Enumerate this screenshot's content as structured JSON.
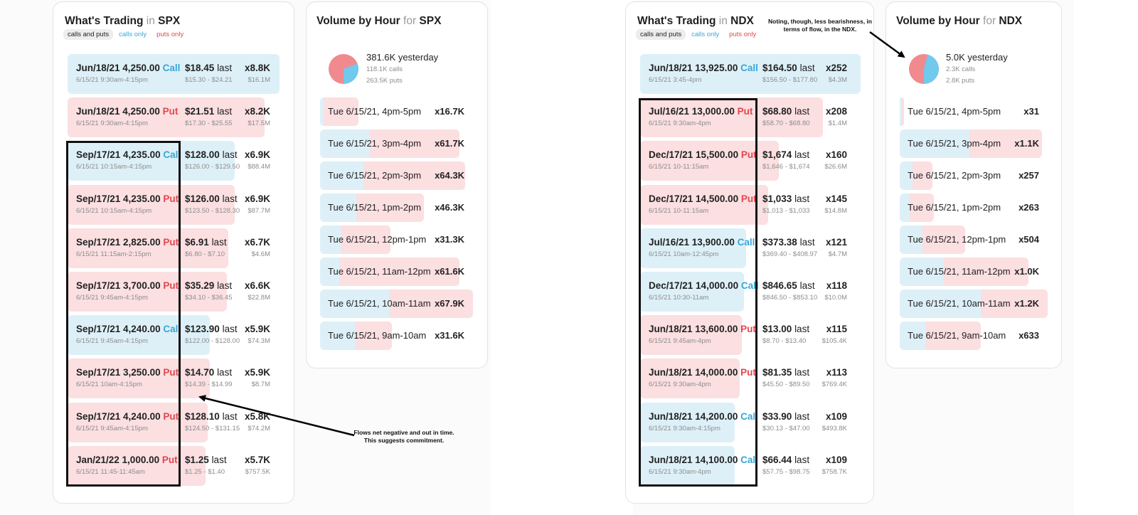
{
  "colors": {
    "call": "#3aa6d8",
    "put": "#e2464d",
    "call_bg": "#ddf0f8",
    "put_bg": "#fbdfe1"
  },
  "spx": {
    "trading": {
      "title_a": "What's Trading",
      "title_in": "in",
      "title_sym": "SPX",
      "filters": [
        "calls and puts",
        "calls only",
        "puts only"
      ],
      "rows": [
        {
          "name": "Jun/18/21 4,250.00",
          "type": "Call",
          "time": "6/15/21 9:30am-4:15pm",
          "last": "$18.45",
          "last_label": "last",
          "range": "$15.30 - $24.21",
          "count": "x8.8K",
          "premium": "$16.1M",
          "bar": 1.0
        },
        {
          "name": "Jun/18/21 4,250.00",
          "type": "Put",
          "time": "6/15/21 9:30am-4:15pm",
          "last": "$21.51",
          "last_label": "last",
          "range": "$17.30 - $25.55",
          "count": "x8.2K",
          "premium": "$17.5M",
          "bar": 0.93
        },
        {
          "name": "Sep/17/21 4,235.00",
          "type": "Call",
          "time": "6/15/21 10:15am-4:15pm",
          "last": "$128.00",
          "last_label": "last",
          "range": "$126.00 - $129.50",
          "count": "x6.9K",
          "premium": "$88.4M",
          "bar": 0.79
        },
        {
          "name": "Sep/17/21 4,235.00",
          "type": "Put",
          "time": "6/15/21 10:15am-4:15pm",
          "last": "$126.00",
          "last_label": "last",
          "range": "$123.50 - $128.30",
          "count": "x6.9K",
          "premium": "$87.7M",
          "bar": 0.79
        },
        {
          "name": "Sep/17/21 2,825.00",
          "type": "Put",
          "time": "6/15/21 11:15am-2:15pm",
          "last": "$6.91",
          "last_label": "last",
          "range": "$6.80 - $7.10",
          "count": "x6.7K",
          "premium": "$4.6M",
          "bar": 0.76
        },
        {
          "name": "Sep/17/21 3,700.00",
          "type": "Put",
          "time": "6/15/21 9:45am-4:15pm",
          "last": "$35.29",
          "last_label": "last",
          "range": "$34.10 - $36.45",
          "count": "x6.6K",
          "premium": "$22.8M",
          "bar": 0.75
        },
        {
          "name": "Sep/17/21 4,240.00",
          "type": "Call",
          "time": "6/15/21 9:45am-4:15pm",
          "last": "$123.90",
          "last_label": "last",
          "range": "$122.00 - $128.00",
          "count": "x5.9K",
          "premium": "$74.3M",
          "bar": 0.67
        },
        {
          "name": "Sep/17/21 3,250.00",
          "type": "Put",
          "time": "6/15/21 10am-4:15pm",
          "last": "$14.70",
          "last_label": "last",
          "range": "$14.39 - $14.99",
          "count": "x5.9K",
          "premium": "$8.7M",
          "bar": 0.67
        },
        {
          "name": "Sep/17/21 4,240.00",
          "type": "Put",
          "time": "6/15/21 9:45am-4:15pm",
          "last": "$128.10",
          "last_label": "last",
          "range": "$124.50 - $131.15",
          "count": "x5.8K",
          "premium": "$74.2M",
          "bar": 0.66
        },
        {
          "name": "Jan/21/22 1,000.00",
          "type": "Put",
          "time": "6/15/21 11:45-11:45am",
          "last": "$1.25",
          "last_label": "last",
          "range": "$1.25 - $1.40",
          "count": "x5.7K",
          "premium": "$757.5K",
          "bar": 0.65
        }
      ]
    },
    "volume": {
      "title_a": "Volume by Hour",
      "title_in": "for",
      "title_sym": "SPX",
      "total": "381.6K yesterday",
      "calls": "118.1K calls",
      "puts": "263.5K puts",
      "call_fraction": 0.31,
      "rows": [
        {
          "label": "Tue 6/15/21, 4pm-5pm",
          "count": "x16.7K",
          "total": 0.25,
          "call_frac": 0.1
        },
        {
          "label": "Tue 6/15/21, 3pm-4pm",
          "count": "x61.7K",
          "total": 0.91,
          "call_frac": 0.35
        },
        {
          "label": "Tue 6/15/21, 2pm-3pm",
          "count": "x64.3K",
          "total": 0.95,
          "call_frac": 0.3
        },
        {
          "label": "Tue 6/15/21, 1pm-2pm",
          "count": "x46.3K",
          "total": 0.68,
          "call_frac": 0.35
        },
        {
          "label": "Tue 6/15/21, 12pm-1pm",
          "count": "x31.3K",
          "total": 0.46,
          "call_frac": 0.29
        },
        {
          "label": "Tue 6/15/21, 11am-12pm",
          "count": "x61.6K",
          "total": 0.91,
          "call_frac": 0.14
        },
        {
          "label": "Tue 6/15/21, 10am-11am",
          "count": "x67.9K",
          "total": 1.0,
          "call_frac": 0.45
        },
        {
          "label": "Tue 6/15/21, 9am-10am",
          "count": "x31.6K",
          "total": 0.47,
          "call_frac": 0.49
        }
      ]
    }
  },
  "ndx": {
    "trading": {
      "title_a": "What's Trading",
      "title_in": "in",
      "title_sym": "NDX",
      "filters": [
        "calls and puts",
        "calls only",
        "puts only"
      ],
      "rows": [
        {
          "name": "Jun/18/21 13,925.00",
          "type": "Call",
          "time": "6/15/21 3:45-4pm",
          "last": "$164.50",
          "last_label": "last",
          "range": "$156.50 - $177.80",
          "count": "x252",
          "premium": "$4.3M",
          "bar": 1.0
        },
        {
          "name": "Jul/16/21 13,000.00",
          "type": "Put",
          "time": "6/15/21 9:30am-4pm",
          "last": "$68.80",
          "last_label": "last",
          "range": "$58.70 - $68.80",
          "count": "x208",
          "premium": "$1.4M",
          "bar": 0.83
        },
        {
          "name": "Dec/17/21 15,500.00",
          "type": "Put",
          "time": "6/15/21 10-11:15am",
          "last": "$1,674",
          "last_label": "last",
          "range": "$1,646 - $1,674",
          "count": "x160",
          "premium": "$26.6M",
          "bar": 0.63
        },
        {
          "name": "Dec/17/21 14,500.00",
          "type": "Put",
          "time": "6/15/21 10-11:15am",
          "last": "$1,033",
          "last_label": "last",
          "range": "$1,013 - $1,033",
          "count": "x145",
          "premium": "$14.8M",
          "bar": 0.58
        },
        {
          "name": "Jul/16/21 13,900.00",
          "type": "Call",
          "time": "6/15/21 10am-12:45pm",
          "last": "$373.38",
          "last_label": "last",
          "range": "$369.40 - $408.97",
          "count": "x121",
          "premium": "$4.7M",
          "bar": 0.48
        },
        {
          "name": "Dec/17/21 14,000.00",
          "type": "Call",
          "time": "6/15/21 10:30-11am",
          "last": "$846.65",
          "last_label": "last",
          "range": "$846.50 - $853.10",
          "count": "x118",
          "premium": "$10.0M",
          "bar": 0.47
        },
        {
          "name": "Jun/18/21 13,600.00",
          "type": "Put",
          "time": "6/15/21 9:45am-4pm",
          "last": "$13.00",
          "last_label": "last",
          "range": "$8.70 - $13.40",
          "count": "x115",
          "premium": "$105.4K",
          "bar": 0.46
        },
        {
          "name": "Jun/18/21 14,000.00",
          "type": "Put",
          "time": "6/15/21 9:30am-4pm",
          "last": "$81.35",
          "last_label": "last",
          "range": "$45.50 - $89.50",
          "count": "x113",
          "premium": "$769.4K",
          "bar": 0.45
        },
        {
          "name": "Jun/18/21 14,200.00",
          "type": "Call",
          "time": "6/15/21 9:30am-4:15pm",
          "last": "$33.90",
          "last_label": "last",
          "range": "$30.13 - $47.00",
          "count": "x109",
          "premium": "$493.8K",
          "bar": 0.43
        },
        {
          "name": "Jun/18/21 14,100.00",
          "type": "Call",
          "time": "6/15/21 9:30am-4pm",
          "last": "$66.44",
          "last_label": "last",
          "range": "$57.75 - $98.75",
          "count": "x109",
          "premium": "$758.7K",
          "bar": 0.43
        }
      ]
    },
    "volume": {
      "title_a": "Volume by Hour",
      "title_in": "for",
      "title_sym": "NDX",
      "total": "5.0K yesterday",
      "calls": "2.3K calls",
      "puts": "2.8K puts",
      "call_fraction": 0.46,
      "rows": [
        {
          "label": "Tue 6/15/21, 4pm-5pm",
          "count": "x31",
          "total": 0.03,
          "call_frac": 0.3
        },
        {
          "label": "Tue 6/15/21, 3pm-4pm",
          "count": "x1.1K",
          "total": 0.96,
          "call_frac": 0.49
        },
        {
          "label": "Tue 6/15/21, 2pm-3pm",
          "count": "x257",
          "total": 0.22,
          "call_frac": 0.4
        },
        {
          "label": "Tue 6/15/21, 1pm-2pm",
          "count": "x263",
          "total": 0.23,
          "call_frac": 0.3
        },
        {
          "label": "Tue 6/15/21, 12pm-1pm",
          "count": "x504",
          "total": 0.44,
          "call_frac": 0.35
        },
        {
          "label": "Tue 6/15/21, 11am-12pm",
          "count": "x1.0K",
          "total": 0.87,
          "call_frac": 0.34
        },
        {
          "label": "Tue 6/15/21, 10am-11am",
          "count": "x1.2K",
          "total": 1.0,
          "call_frac": 0.55
        },
        {
          "label": "Tue 6/15/21, 9am-10am",
          "count": "x633",
          "total": 0.55,
          "call_frac": 0.32
        }
      ]
    }
  },
  "annotations": {
    "spx_note": "Flows net negative and out in time. This suggests commitment.",
    "ndx_note": "Noting, though, less bearishness, in terms of flow, in the NDX."
  }
}
